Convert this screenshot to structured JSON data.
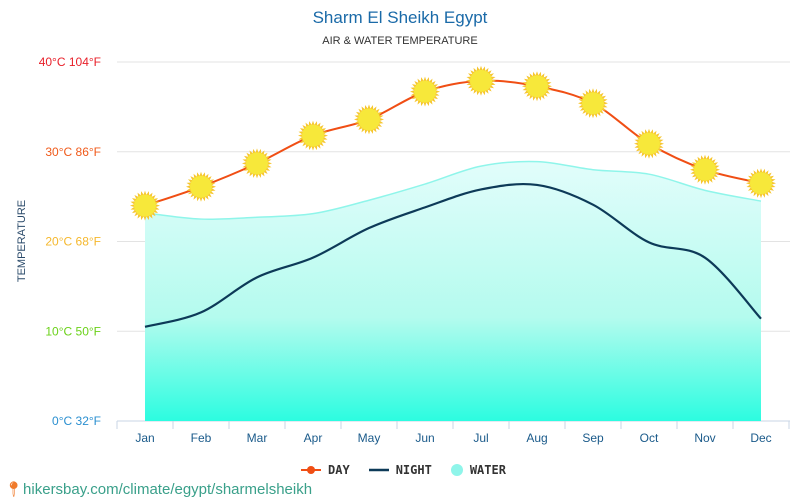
{
  "chart_data": {
    "type": "line",
    "title": "Sharm El Sheikh Egypt",
    "subtitle": "AIR & WATER TEMPERATURE",
    "ylabel": "TEMPERATURE",
    "xlabel": "",
    "ylim": [
      0,
      40
    ],
    "yticks": [
      {
        "value": 0,
        "label": "0°C 32°F",
        "color": "#2a8fd0"
      },
      {
        "value": 10,
        "label": "10°C 50°F",
        "color": "#6bd11a"
      },
      {
        "value": 20,
        "label": "20°C 68°F",
        "color": "#f5b82e"
      },
      {
        "value": 30,
        "label": "30°C 86°F",
        "color": "#f05a1a"
      },
      {
        "value": 40,
        "label": "40°C 104°F",
        "color": "#e8202a"
      }
    ],
    "categories": [
      "Jan",
      "Feb",
      "Mar",
      "Apr",
      "May",
      "Jun",
      "Jul",
      "Aug",
      "Sep",
      "Oct",
      "Nov",
      "Dec"
    ],
    "series": [
      {
        "name": "DAY",
        "color": "#f04e14",
        "values": [
          24,
          26.1,
          28.7,
          31.8,
          33.6,
          36.7,
          37.9,
          37.3,
          35.4,
          30.9,
          28,
          26.5
        ]
      },
      {
        "name": "NIGHT",
        "color": "#0d3a58",
        "values": [
          10.5,
          12.1,
          16,
          18.2,
          21.5,
          23.8,
          25.8,
          26.3,
          24.1,
          19.9,
          18.2,
          11.4
        ]
      },
      {
        "name": "WATER",
        "color": "#8ff5ea",
        "values": [
          23.2,
          22.5,
          22.7,
          23.1,
          24.6,
          26.4,
          28.4,
          28.9,
          28,
          27.5,
          25.7,
          24.5
        ]
      }
    ],
    "grid": true,
    "legend_position": "bottom"
  },
  "footer": "hikersbay.com/climate/egypt/sharmelsheikh"
}
